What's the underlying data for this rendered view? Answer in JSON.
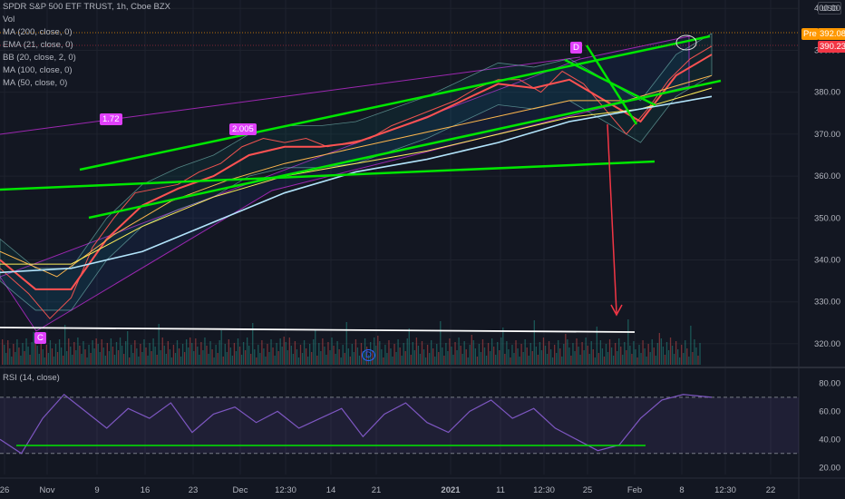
{
  "legend": {
    "symbol": "SPDR S&P 500 ETF TRUST, 1h, Cboe BZX",
    "vol": "Vol",
    "studies": [
      "MA (200, close, 0)",
      "EMA (21, close, 0)",
      "BB (20, close, 2, 0)",
      "MA (100, close, 0)",
      "MA (50, close, 0)"
    ],
    "rsi": "RSI (14, close)"
  },
  "price_axis": {
    "currency": "USD",
    "ticks": [
      "400.00",
      "390.00",
      "380.00",
      "370.00",
      "360.00",
      "350.00",
      "340.00",
      "330.00",
      "320.00"
    ],
    "pre_label": "Pre",
    "pre_price": "392.08",
    "last_price": "390.23",
    "colors": {
      "pre": "#ff9800",
      "last": "#f23645"
    }
  },
  "rsi_axis": {
    "ticks": [
      "80.00",
      "60.00",
      "40.00",
      "20.00"
    ]
  },
  "time_axis": [
    "26",
    "Nov",
    "9",
    "16",
    "23",
    "Dec",
    "12:30",
    "14",
    "21",
    "2021",
    "11",
    "12:30",
    "25",
    "Feb",
    "8",
    "12:30",
    "22"
  ],
  "annotations": {
    "label_1": "1.72",
    "label_2": "2.005",
    "point_c": "C",
    "point_d": "D",
    "dividend": "D"
  },
  "chart_data": {
    "type": "line",
    "title": "SPDR S&P 500 ETF TRUST, 1h, Cboe BZX",
    "ylim": [
      315,
      402
    ],
    "rsi_ylim": [
      15,
      88
    ],
    "series": [
      {
        "name": "price",
        "x": [
          0,
          4,
          7,
          10,
          13,
          16,
          19,
          22,
          25,
          28,
          31,
          34,
          37,
          40,
          43,
          46,
          49,
          52,
          55,
          58,
          61,
          64,
          67,
          70,
          73,
          76,
          79,
          82,
          85,
          88,
          91,
          94,
          97,
          100
        ],
        "values": [
          338,
          332,
          326,
          331,
          343,
          350,
          356,
          357,
          358,
          361,
          363,
          367,
          369,
          368,
          369,
          367,
          368,
          369,
          372,
          374,
          376,
          378,
          381,
          383,
          383,
          380,
          385,
          382,
          376,
          370,
          376,
          383,
          388,
          391
        ]
      },
      {
        "name": "EMA (21, close, 0)",
        "x": [
          0,
          5,
          10,
          15,
          20,
          25,
          30,
          35,
          40,
          45,
          50,
          55,
          60,
          65,
          70,
          75,
          80,
          85,
          90,
          95,
          100
        ],
        "values": [
          340,
          333,
          333,
          345,
          353,
          357,
          360,
          365,
          367,
          367,
          368,
          371,
          374,
          378,
          382,
          381,
          383,
          378,
          373,
          384,
          389
        ]
      },
      {
        "name": "MA (50, close, 0)",
        "x": [
          0,
          8,
          16,
          24,
          32,
          40,
          48,
          56,
          64,
          72,
          80,
          88,
          96,
          100
        ],
        "values": [
          342,
          336,
          346,
          354,
          359,
          363,
          366,
          369,
          372,
          375,
          378,
          378,
          382,
          384
        ]
      },
      {
        "name": "MA (100, close, 0)",
        "x": [
          0,
          10,
          20,
          30,
          40,
          50,
          60,
          70,
          80,
          90,
          100
        ],
        "values": [
          339,
          339,
          348,
          355,
          360,
          363,
          366,
          370,
          374,
          376,
          381
        ]
      },
      {
        "name": "MA (200, close, 0)",
        "x": [
          0,
          10,
          20,
          30,
          40,
          50,
          60,
          70,
          80,
          90,
          100
        ],
        "values": [
          337,
          338,
          342,
          349,
          356,
          361,
          364,
          368,
          373,
          376,
          379
        ]
      },
      {
        "name": "RSI (14, close)",
        "x": [
          0,
          3,
          6,
          9,
          12,
          15,
          18,
          21,
          24,
          27,
          30,
          33,
          36,
          39,
          42,
          45,
          48,
          51,
          54,
          57,
          60,
          63,
          66,
          69,
          72,
          75,
          78,
          81,
          84,
          87,
          90,
          93,
          96,
          100
        ],
        "values": [
          40,
          30,
          55,
          72,
          60,
          48,
          62,
          55,
          66,
          45,
          58,
          63,
          52,
          60,
          48,
          55,
          62,
          42,
          58,
          66,
          52,
          45,
          60,
          68,
          55,
          62,
          48,
          40,
          32,
          36,
          55,
          68,
          72,
          70
        ]
      }
    ],
    "rsi_levels": [
      70,
      30
    ],
    "colors": {
      "price": "#ef5350",
      "ema": "#ff5252",
      "ma50": "#ffb74d",
      "ma100": "#ffee58",
      "ma200": "#b3e5fc",
      "bb": "#80cbc4",
      "rsi": "#7e57c2",
      "trendline": "#00e600",
      "support": "#ffffff",
      "arrow": "#f23645",
      "marker": "#e040fb"
    }
  }
}
